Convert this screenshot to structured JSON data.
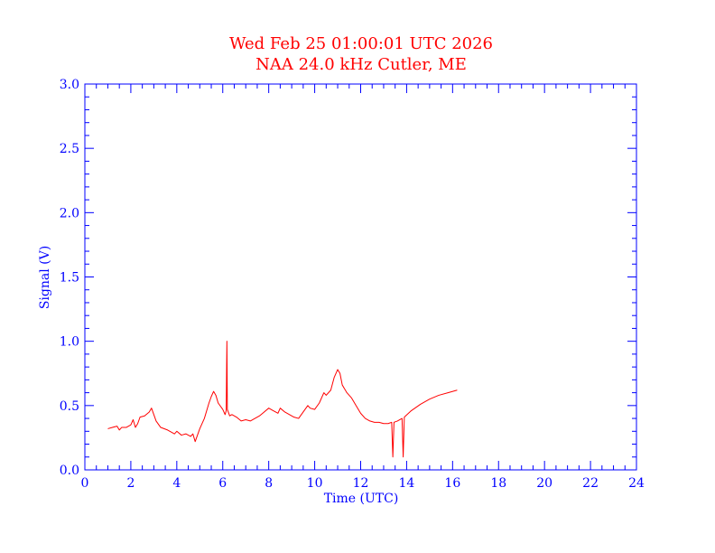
{
  "chart_data": {
    "type": "line",
    "title": "Wed Feb 25 01:00:01 UTC 2026",
    "subtitle": "NAA 24.0 kHz Cutler, ME",
    "xlabel": "Time (UTC)",
    "ylabel": "Signal (V)",
    "xlim": [
      0,
      24
    ],
    "ylim": [
      0.0,
      3.0
    ],
    "x_ticks": [
      "0",
      "2",
      "4",
      "6",
      "8",
      "10",
      "12",
      "14",
      "16",
      "18",
      "20",
      "22",
      "24"
    ],
    "y_ticks": [
      "0.0",
      "0.5",
      "1.0",
      "1.5",
      "2.0",
      "2.5",
      "3.0"
    ],
    "grid": false,
    "colors": {
      "title": "#ff0000",
      "axis": "#0000ff",
      "series": "#ff0000",
      "background": "#ffffff"
    },
    "series": [
      {
        "points": [
          [
            1.0,
            0.32
          ],
          [
            1.2,
            0.33
          ],
          [
            1.4,
            0.34
          ],
          [
            1.5,
            0.31
          ],
          [
            1.6,
            0.33
          ],
          [
            1.8,
            0.33
          ],
          [
            2.0,
            0.35
          ],
          [
            2.1,
            0.39
          ],
          [
            2.2,
            0.33
          ],
          [
            2.3,
            0.36
          ],
          [
            2.4,
            0.41
          ],
          [
            2.6,
            0.42
          ],
          [
            2.8,
            0.45
          ],
          [
            2.9,
            0.48
          ],
          [
            3.0,
            0.43
          ],
          [
            3.1,
            0.38
          ],
          [
            3.3,
            0.33
          ],
          [
            3.6,
            0.31
          ],
          [
            3.9,
            0.28
          ],
          [
            4.0,
            0.3
          ],
          [
            4.2,
            0.27
          ],
          [
            4.4,
            0.28
          ],
          [
            4.6,
            0.26
          ],
          [
            4.7,
            0.28
          ],
          [
            4.8,
            0.22
          ],
          [
            5.0,
            0.32
          ],
          [
            5.2,
            0.4
          ],
          [
            5.4,
            0.52
          ],
          [
            5.5,
            0.57
          ],
          [
            5.6,
            0.61
          ],
          [
            5.7,
            0.58
          ],
          [
            5.8,
            0.52
          ],
          [
            6.0,
            0.47
          ],
          [
            6.1,
            0.43
          ],
          [
            6.15,
            0.46
          ],
          [
            6.18,
            1.0
          ],
          [
            6.2,
            0.47
          ],
          [
            6.3,
            0.42
          ],
          [
            6.4,
            0.43
          ],
          [
            6.6,
            0.41
          ],
          [
            6.8,
            0.38
          ],
          [
            7.0,
            0.39
          ],
          [
            7.2,
            0.38
          ],
          [
            7.4,
            0.4
          ],
          [
            7.6,
            0.42
          ],
          [
            7.8,
            0.45
          ],
          [
            8.0,
            0.48
          ],
          [
            8.2,
            0.46
          ],
          [
            8.4,
            0.44
          ],
          [
            8.5,
            0.48
          ],
          [
            8.7,
            0.45
          ],
          [
            8.9,
            0.43
          ],
          [
            9.1,
            0.41
          ],
          [
            9.3,
            0.4
          ],
          [
            9.5,
            0.45
          ],
          [
            9.7,
            0.5
          ],
          [
            9.8,
            0.48
          ],
          [
            10.0,
            0.47
          ],
          [
            10.2,
            0.52
          ],
          [
            10.4,
            0.6
          ],
          [
            10.5,
            0.58
          ],
          [
            10.7,
            0.62
          ],
          [
            10.85,
            0.72
          ],
          [
            11.0,
            0.78
          ],
          [
            11.1,
            0.75
          ],
          [
            11.2,
            0.66
          ],
          [
            11.4,
            0.6
          ],
          [
            11.6,
            0.56
          ],
          [
            11.8,
            0.5
          ],
          [
            12.0,
            0.44
          ],
          [
            12.2,
            0.4
          ],
          [
            12.4,
            0.38
          ],
          [
            12.6,
            0.37
          ],
          [
            12.8,
            0.37
          ],
          [
            13.0,
            0.36
          ],
          [
            13.2,
            0.36
          ],
          [
            13.35,
            0.37
          ],
          [
            13.4,
            0.1
          ],
          [
            13.45,
            0.37
          ],
          [
            13.6,
            0.38
          ],
          [
            13.8,
            0.4
          ],
          [
            13.85,
            0.1
          ],
          [
            13.9,
            0.41
          ],
          [
            14.2,
            0.46
          ],
          [
            14.6,
            0.51
          ],
          [
            15.0,
            0.55
          ],
          [
            15.4,
            0.58
          ],
          [
            15.8,
            0.6
          ],
          [
            16.2,
            0.62
          ]
        ]
      }
    ]
  }
}
